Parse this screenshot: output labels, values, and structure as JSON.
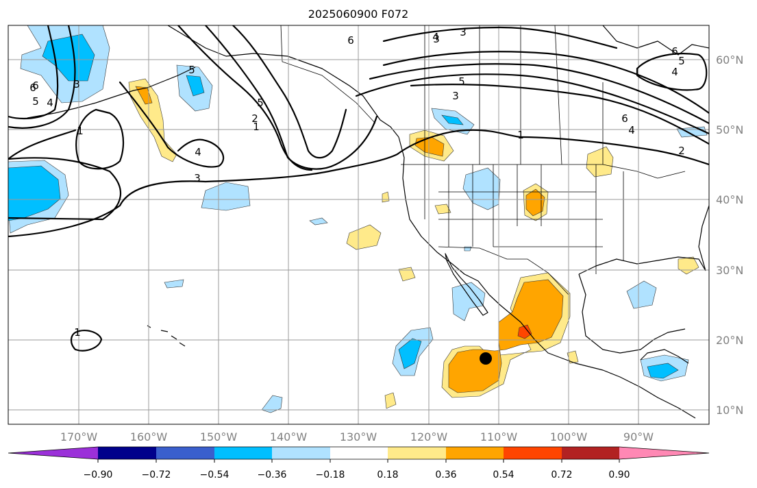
{
  "title": "2025060900 F072",
  "lat_labels": [
    "60°N",
    "50°N",
    "40°N",
    "30°N",
    "20°N",
    "10°N"
  ],
  "lon_labels": [
    "170°W",
    "160°W",
    "150°W",
    "140°W",
    "130°W",
    "120°W",
    "110°W",
    "100°W",
    "90°W"
  ],
  "colorbar": {
    "ticks": [
      "−0.90",
      "−0.72",
      "−0.54",
      "−0.36",
      "−0.18",
      "0.18",
      "0.36",
      "0.54",
      "0.72",
      "0.90"
    ],
    "colors": [
      "#9b30d9",
      "#00008b",
      "#3a5fcd",
      "#00bfff",
      "#b0e2ff",
      "#ffffff",
      "#ffea8a",
      "#ffa500",
      "#ff4500",
      "#b22222",
      "#ff88b4"
    ]
  },
  "contour_labels": [
    "6",
    "3",
    "4",
    "6",
    "5",
    "3",
    "6",
    "5",
    "4",
    "5",
    "3",
    "1",
    "1",
    "5",
    "2",
    "3",
    "6",
    "4",
    "2",
    "4",
    "3",
    "1",
    "1",
    "6",
    "5",
    "4"
  ],
  "marker": {
    "name": "storm-center",
    "lat": 17.4,
    "lon": -112.0
  }
}
